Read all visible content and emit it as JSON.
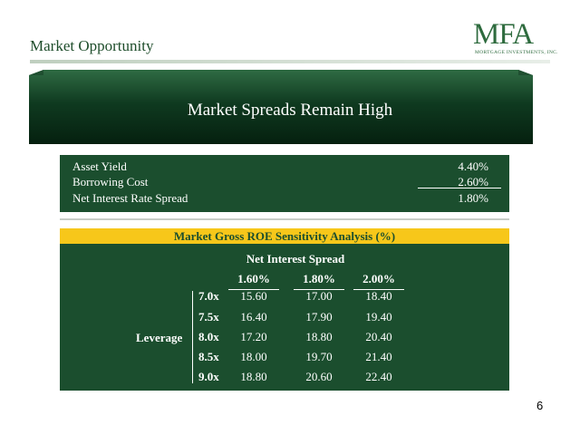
{
  "header": {
    "title": "Market Opportunity"
  },
  "logo": {
    "mark": "MFA",
    "tagline": "MORTGAGE INVESTMENTS, INC."
  },
  "banner": {
    "title": "Market Spreads Remain High"
  },
  "spread_table": {
    "rows": [
      {
        "label": "Asset Yield",
        "value": "4.40%"
      },
      {
        "label": "Borrowing Cost",
        "value": "2.60%"
      },
      {
        "label": "Net Interest Rate Spread",
        "value": "1.80%"
      }
    ]
  },
  "roe_table": {
    "title": "Market Gross ROE Sensitivity Analysis (%)",
    "column_group": "Net Interest Spread",
    "columns": [
      "1.60%",
      "1.80%",
      "2.00%"
    ],
    "row_group": "Leverage",
    "rows": [
      {
        "label": "7.0x",
        "values": [
          "15.60",
          "17.00",
          "18.40"
        ]
      },
      {
        "label": "7.5x",
        "values": [
          "16.40",
          "17.90",
          "19.40"
        ]
      },
      {
        "label": "8.0x",
        "values": [
          "17.20",
          "18.80",
          "20.40"
        ]
      },
      {
        "label": "8.5x",
        "values": [
          "18.00",
          "19.70",
          "21.40"
        ]
      },
      {
        "label": "9.0x",
        "values": [
          "18.80",
          "20.60",
          "22.40"
        ]
      }
    ]
  },
  "colors": {
    "dark_green": "#1b4e2e",
    "gold": "#f7c71a",
    "white": "#ffffff"
  },
  "footer": {
    "page_number": "6"
  }
}
